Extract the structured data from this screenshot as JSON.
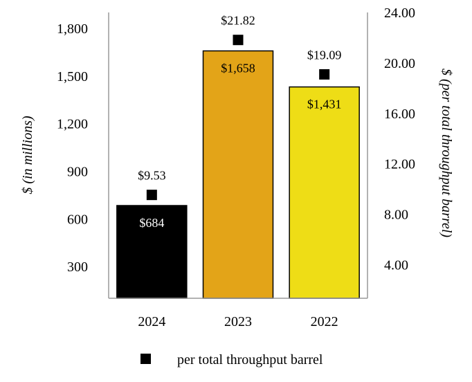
{
  "chart_data": {
    "type": "bar",
    "categories": [
      "2024",
      "2023",
      "2022"
    ],
    "series": [
      {
        "values": [
          684,
          1658,
          1431
        ],
        "labels": [
          "$684",
          "$1,658",
          "$1,431"
        ],
        "colors": [
          "#000000",
          "#E3A418",
          "#EEDD16"
        ],
        "label_colors": [
          "#ffffff",
          "#000000",
          "#000000"
        ],
        "axis": "left"
      },
      {
        "name": "per total throughput barrel",
        "type": "scatter",
        "marker": "square",
        "values": [
          9.53,
          21.82,
          19.09
        ],
        "labels": [
          "$9.53",
          "$21.82",
          "$19.09"
        ],
        "axis": "right"
      }
    ],
    "ylabel": "$ (in millions)",
    "ylabel_right": "$ (per total throughput barrel)",
    "yticks": [
      "300",
      "600",
      "900",
      "1,200",
      "1,500",
      "1,800"
    ],
    "ytick_values": [
      300,
      600,
      900,
      1200,
      1500,
      1800
    ],
    "yticks_right": [
      "4.00",
      "8.00",
      "12.00",
      "16.00",
      "20.00",
      "24.00"
    ],
    "ytick_right_values": [
      4,
      8,
      12,
      16,
      20,
      24
    ],
    "ylim": [
      100,
      1900
    ],
    "ylim_right": [
      1.333,
      24.0
    ],
    "grid": false,
    "legend": {
      "position": "bottom",
      "entries": [
        "per total throughput barrel"
      ]
    }
  }
}
